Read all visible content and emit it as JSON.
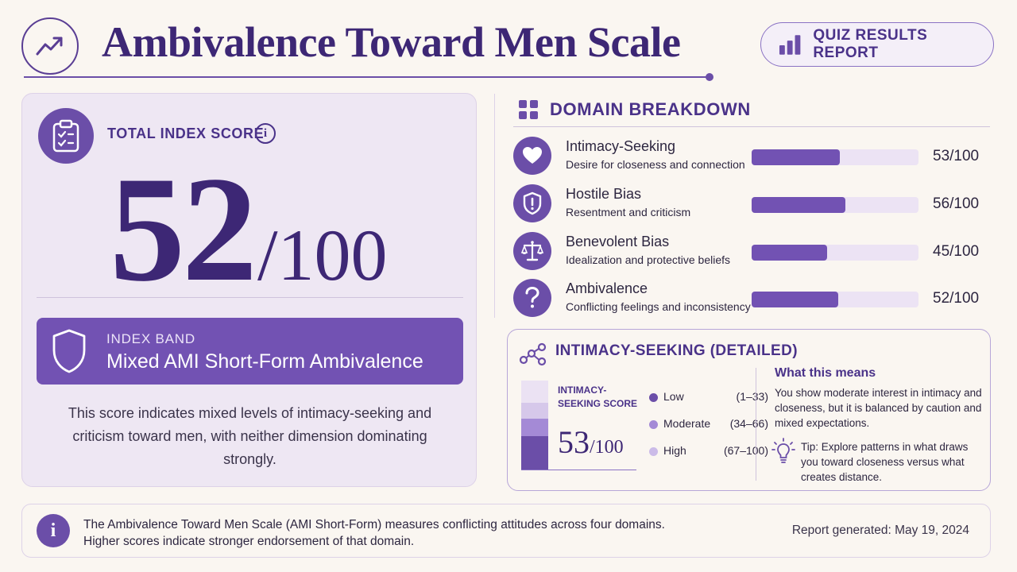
{
  "header": {
    "title": "Ambivalence Toward Men Scale",
    "trend_icon": "trend-up-icon",
    "report_button_label": "QUIZ RESULTS REPORT",
    "report_button_icon": "bar-chart-icon"
  },
  "total": {
    "label": "TOTAL INDEX SCORE",
    "info_glyph": "i",
    "score": "52",
    "denominator": "/100",
    "band_label": "INDEX BAND",
    "band_value": "Mixed AMI Short-Form Ambivalence",
    "description": "This score indicates mixed levels of intimacy-seeking and criticism toward men, with neither dimension dominating strongly."
  },
  "domains": {
    "title": "DOMAIN BREAKDOWN",
    "items": [
      {
        "name": "Intimacy-Seeking",
        "desc": "Desire for closeness and connection",
        "score": 53,
        "score_text": "53/100",
        "icon": "heart-icon"
      },
      {
        "name": "Hostile Bias",
        "desc": "Resentment and criticism",
        "score": 56,
        "score_text": "56/100",
        "icon": "shield-alert-icon"
      },
      {
        "name": "Benevolent Bias",
        "desc": "Idealization and protective beliefs",
        "score": 45,
        "score_text": "45/100",
        "icon": "scales-icon"
      },
      {
        "name": "Ambivalence",
        "desc": "Conflicting feelings and inconsistency",
        "score": 52,
        "score_text": "52/100",
        "icon": "question-icon"
      }
    ]
  },
  "detail": {
    "title": "INTIMACY-SEEKING (DETAILED)",
    "mini_label": "INTIMACY-SEEKING SCORE",
    "score": "53",
    "denominator": "/100",
    "legend": [
      {
        "name": "Low",
        "range": "(1–33)",
        "color": "#6b4ea8"
      },
      {
        "name": "Moderate",
        "range": "(34–66)",
        "color": "#a48ad6"
      },
      {
        "name": "High",
        "range": "(67–100)",
        "color": "#cbbbe8"
      }
    ],
    "means_title": "What this means",
    "means_text": "You show moderate interest in intimacy and closeness, but it is balanced by caution and mixed expectations.",
    "tip_text": "Tip: Explore patterns in what draws you toward closeness versus what creates distance."
  },
  "footer": {
    "info_glyph": "i",
    "text_line1": "The Ambivalence Toward Men Scale (AMI Short-Form) measures conflicting attitudes across four domains.",
    "text_line2": "Higher scores indicate stronger endorsement of that domain.",
    "date": "Report generated: May 19, 2024"
  },
  "colors": {
    "accent": "#6b4ea8",
    "title": "#3d2775",
    "background": "#faf6f1"
  }
}
